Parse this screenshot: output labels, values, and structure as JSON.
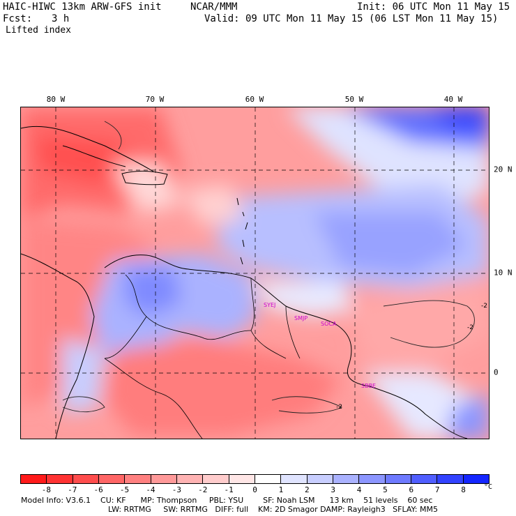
{
  "header": {
    "model_title": "HAIC-HIWC 13km ARW-GFS init",
    "org": "NCAR/MMM",
    "init": "Init: 06 UTC Mon 11 May 15",
    "fcst_label": "Fcst:",
    "fcst_value": "3 h",
    "valid": "Valid: 09 UTC Mon 11 May 15 (06 LST Mon 11 May 15)",
    "field": "Lifted index"
  },
  "map": {
    "lon_labels": [
      "80 W",
      "70 W",
      "60 W",
      "50 W",
      "40 W"
    ],
    "lat_labels": [
      "20 N",
      "10 N",
      "0"
    ],
    "stations": [
      "SYEJ",
      "SMJP",
      "SOCA",
      "SBBE"
    ],
    "contour_labels": [
      "-2",
      "-2",
      "-2"
    ]
  },
  "colorbar": {
    "labels": [
      "-8",
      "-7",
      "-6",
      "-5",
      "-4",
      "-3",
      "-2",
      "-1",
      "0",
      "1",
      "2",
      "3",
      "4",
      "5",
      "6",
      "7",
      "8"
    ],
    "unit": "°C",
    "colors": [
      "#ff1a1a",
      "#ff3333",
      "#ff4d4d",
      "#ff6666",
      "#ff8080",
      "#ff9999",
      "#ffb3b3",
      "#ffcccc",
      "#ffe6e6",
      "#ffffff",
      "#e0e4ff",
      "#c8ceff",
      "#aab2ff",
      "#8c96ff",
      "#6e7aff",
      "#505eff",
      "#3242ff",
      "#1426ff"
    ]
  },
  "footer": {
    "line1": "Model Info: V3.6.1    CU: KF      MP: Thompson     PBL: YSU        SF: Noah LSM      13 km    51 levels    60 sec",
    "line2": "LW: RRTMG     SW: RRTMG   DIFF: full    KM: 2D Smagor DAMP: Rayleigh3   SFLAY: MM5"
  }
}
